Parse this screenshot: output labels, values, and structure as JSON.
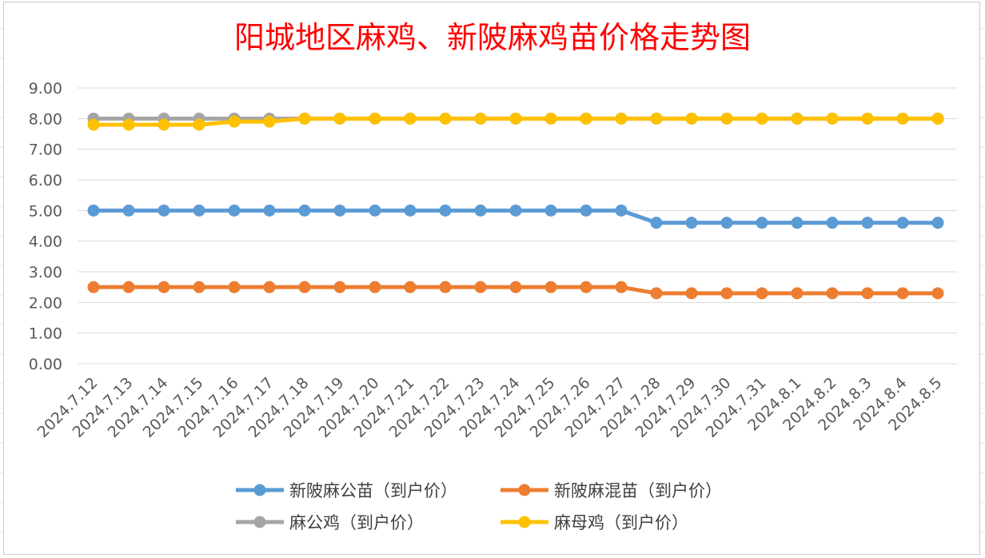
{
  "chart_data": {
    "type": "line",
    "title": "阳城地区麻鸡、新陂麻鸡苗价格走势图",
    "xlabel": "",
    "ylabel": "",
    "ylim": [
      0,
      9
    ],
    "ytick_labels": [
      "0.00",
      "1.00",
      "2.00",
      "3.00",
      "4.00",
      "5.00",
      "6.00",
      "7.00",
      "8.00",
      "9.00"
    ],
    "grid": true,
    "legend_position": "bottom",
    "categories": [
      "2024.7.12",
      "2024.7.13",
      "2024.7.14",
      "2024.7.15",
      "2024.7.16",
      "2024.7.17",
      "2024.7.18",
      "2024.7.19",
      "2024.7.20",
      "2024.7.21",
      "2024.7.22",
      "2024.7.23",
      "2024.7.24",
      "2024.7.25",
      "2024.7.26",
      "2024.7.27",
      "2024.7.28",
      "2024.7.29",
      "2024.7.30",
      "2024.7.31",
      "2024.8.1",
      "2024.8.2",
      "2024.8.3",
      "2024.8.4",
      "2024.8.5"
    ],
    "series": [
      {
        "name": "新陂麻公苗（到户价）",
        "color": "#5b9bd5",
        "values": [
          5.0,
          5.0,
          5.0,
          5.0,
          5.0,
          5.0,
          5.0,
          5.0,
          5.0,
          5.0,
          5.0,
          5.0,
          5.0,
          5.0,
          5.0,
          5.0,
          4.6,
          4.6,
          4.6,
          4.6,
          4.6,
          4.6,
          4.6,
          4.6,
          4.6
        ]
      },
      {
        "name": "新陂麻混苗（到户价）",
        "color": "#ed7d31",
        "values": [
          2.5,
          2.5,
          2.5,
          2.5,
          2.5,
          2.5,
          2.5,
          2.5,
          2.5,
          2.5,
          2.5,
          2.5,
          2.5,
          2.5,
          2.5,
          2.5,
          2.3,
          2.3,
          2.3,
          2.3,
          2.3,
          2.3,
          2.3,
          2.3,
          2.3
        ]
      },
      {
        "name": "麻公鸡（到户价）",
        "color": "#a5a5a5",
        "values": [
          8.0,
          8.0,
          8.0,
          8.0,
          8.0,
          8.0,
          8.0,
          8.0,
          8.0,
          8.0,
          8.0,
          8.0,
          8.0,
          8.0,
          8.0,
          8.0,
          8.0,
          8.0,
          8.0,
          8.0,
          8.0,
          8.0,
          8.0,
          8.0,
          8.0
        ]
      },
      {
        "name": "麻母鸡（到户价）",
        "color": "#ffc000",
        "values": [
          7.8,
          7.8,
          7.8,
          7.8,
          7.9,
          7.9,
          8.0,
          8.0,
          8.0,
          8.0,
          8.0,
          8.0,
          8.0,
          8.0,
          8.0,
          8.0,
          8.0,
          8.0,
          8.0,
          8.0,
          8.0,
          8.0,
          8.0,
          8.0,
          8.0
        ]
      }
    ]
  }
}
